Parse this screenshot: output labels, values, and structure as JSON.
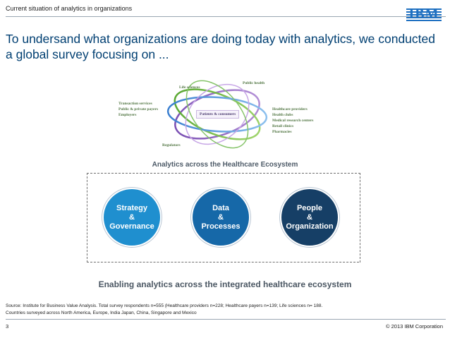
{
  "header": {
    "label": "Current situation of analytics in organizations",
    "logo_text": "IBM"
  },
  "headline": "To undersand what organizations are doing today with analytics, we conducted a global survey focusing on ...",
  "ecosystem": {
    "center": "Patients & consumers",
    "left_labels": [
      "Transaction services",
      "Public & private payers",
      "Employers"
    ],
    "top_labels": [
      "Life sciences",
      "Public health"
    ],
    "right_labels": [
      "Healthcare providers",
      "Health clubs",
      "Medical research centers",
      "Retail clinics",
      "Pharmacies"
    ],
    "bottom_label": "Regulators",
    "caption": "Analytics across the Healthcare Ecosystem"
  },
  "circles": [
    {
      "text": "Strategy\n&\nGovernance"
    },
    {
      "text": "Data\n&\nProcesses"
    },
    {
      "text": "People\n&\nOrganization"
    }
  ],
  "enabling": "Enabling analytics across the integrated healthcare ecosystem",
  "source": {
    "line1": "Source: Institute for Business Value Analysis. Total survey respondents n=555 (Healthcare providers n=228; Healthcare payers n=139; Life sciences n= 188.",
    "line2": "Countries surveyed across North America, Europe, India Japan, China, Singapore and Mexico"
  },
  "footer": {
    "page_number": "3",
    "copyright": "© 2013 IBM Corporation"
  },
  "colors": {
    "headline": "#003f72",
    "ibm_blue": "#1f70c1",
    "circle1": "#1f8fcf",
    "circle2": "#1668a8",
    "circle3": "#163f66"
  }
}
